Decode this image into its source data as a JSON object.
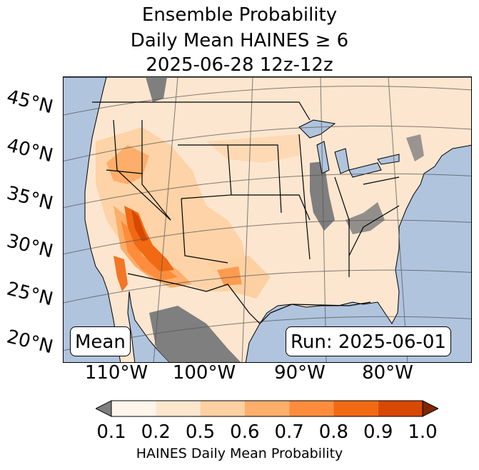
{
  "title": {
    "line1": "Ensemble Probability",
    "line2": "Daily Mean HAINES ≥ 6",
    "line3": "2025-06-28 12z-12z"
  },
  "map": {
    "region": "Contiguous United States",
    "projection": "Lambert conformal",
    "ocean_color": "#b0c4de",
    "land_low_color": "#fde6cf",
    "missing_color": "#7f7f7f",
    "lat_labels": [
      "45°N",
      "40°N",
      "35°N",
      "30°N",
      "25°N",
      "20°N"
    ],
    "lon_labels": [
      "110°W",
      "100°W",
      "90°W",
      "80°W"
    ],
    "stat_label": "Mean",
    "run_label": "Run: 2025-06-01"
  },
  "colorbar": {
    "ticks": [
      "0.1",
      "0.2",
      "0.5",
      "0.6",
      "0.7",
      "0.8",
      "0.9",
      "1.0"
    ],
    "colors": [
      "#fff5eb",
      "#fde6ce",
      "#fdd0a2",
      "#fdae6b",
      "#fd8d3c",
      "#f16913",
      "#d94801",
      "#7f2704"
    ],
    "under_color": "#7f7f7f",
    "label": "HAINES Daily Mean Probability"
  }
}
